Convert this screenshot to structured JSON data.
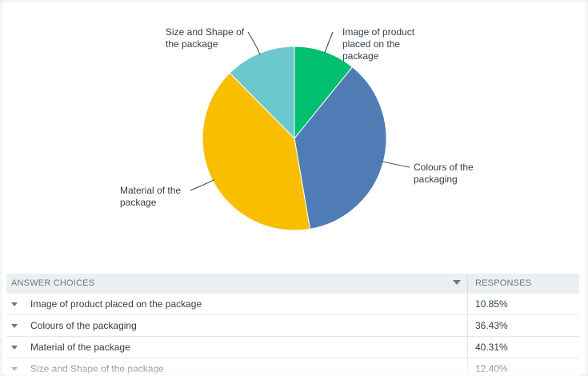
{
  "chart_data": {
    "type": "pie",
    "title": "",
    "slices": [
      {
        "label": "Image of product placed on the package",
        "label_lines": [
          "Image of product",
          "placed on the",
          "package"
        ],
        "value": 10.85,
        "color": "#00bf6f"
      },
      {
        "label": "Colours of the packaging",
        "label_lines": [
          "Colours of the",
          "packaging"
        ],
        "value": 36.43,
        "color": "#507cb6"
      },
      {
        "label": "Material of the package",
        "label_lines": [
          "Material of the",
          "package"
        ],
        "value": 40.31,
        "color": "#f9be00"
      },
      {
        "label": "Size and Shape of the package",
        "label_lines": [
          "Size and Shape of",
          "the package"
        ],
        "value": 12.4,
        "color": "#6bc8cd"
      }
    ]
  },
  "table": {
    "header_choices": "ANSWER CHOICES",
    "header_responses": "RESPONSES",
    "rows": [
      {
        "choice": "Image of product placed on the package",
        "response": "10.85%"
      },
      {
        "choice": "Colours of the packaging",
        "response": "36.43%"
      },
      {
        "choice": "Material of the package",
        "response": "40.31%"
      },
      {
        "choice": "Size and Shape of the package",
        "response": "12.40%"
      }
    ]
  }
}
